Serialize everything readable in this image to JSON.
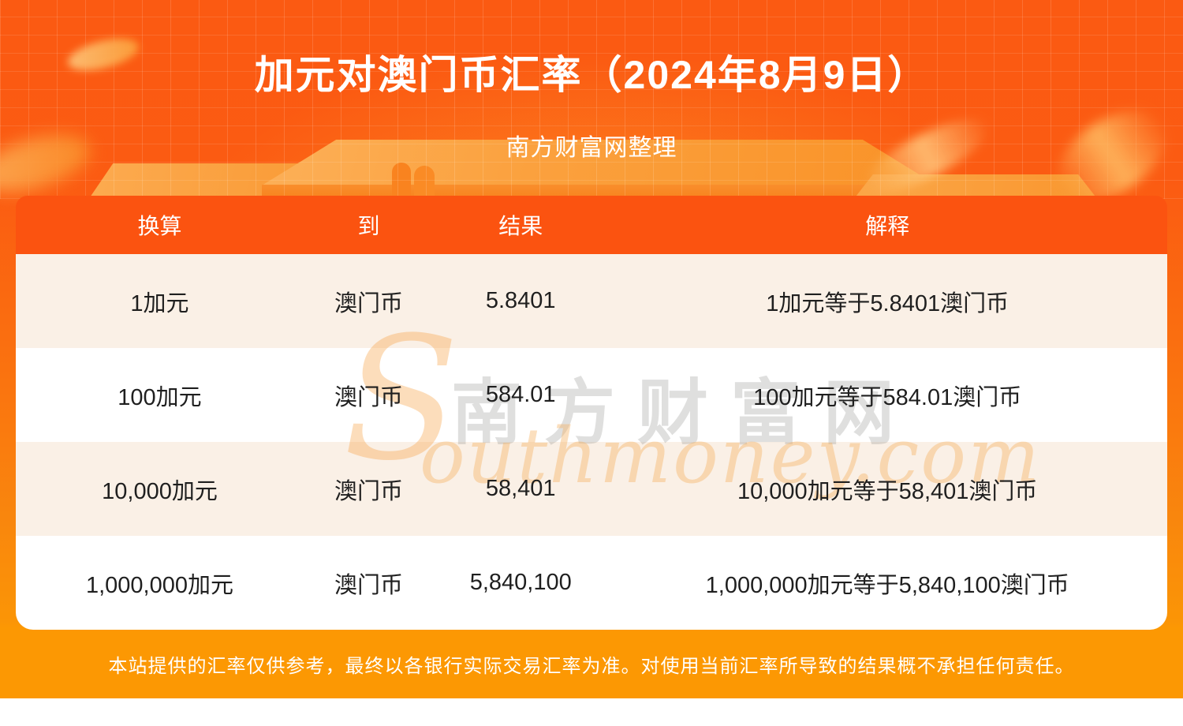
{
  "banner": {
    "title": "加元对澳门币汇率（2024年8月9日）",
    "subtitle": "南方财富网整理"
  },
  "table": {
    "headers": {
      "convert": "换算",
      "to": "到",
      "result": "结果",
      "explain": "解释"
    },
    "rows": [
      {
        "convert": "1加元",
        "to": "澳门币",
        "result": "5.8401",
        "explain": "1加元等于5.8401澳门币"
      },
      {
        "convert": "100加元",
        "to": "澳门币",
        "result": "584.01",
        "explain": "100加元等于584.01澳门币"
      },
      {
        "convert": "10,000加元",
        "to": "澳门币",
        "result": "58,401",
        "explain": "10,000加元等于58,401澳门币"
      },
      {
        "convert": "1,000,000加元",
        "to": "澳门币",
        "result": "5,840,100",
        "explain": "1,000,000加元等于5,840,100澳门币"
      }
    ]
  },
  "watermark": {
    "initial": "S",
    "cn": "南方财富网",
    "en": "outhmoney.com"
  },
  "footer": {
    "disclaimer": "本站提供的汇率仅供参考，最终以各银行实际交易汇率为准。对使用当前汇率所导致的结果概不承担任何责任。"
  },
  "colors": {
    "page_orange_top": "#fb5a12",
    "table_header_orange": "#fb5310",
    "row_cream": "#faf0e6",
    "row_white": "#ffffff",
    "footer_gold": "#fc9803",
    "text_dark": "#1f1f1f",
    "text_white": "#ffffff"
  },
  "chart_data": {
    "type": "table",
    "title": "加元对澳门币汇率（2024年8月9日）",
    "columns": [
      "换算",
      "到",
      "结果",
      "解释"
    ],
    "rows": [
      [
        "1加元",
        "澳门币",
        "5.8401",
        "1加元等于5.8401澳门币"
      ],
      [
        "100加元",
        "澳门币",
        "584.01",
        "100加元等于584.01澳门币"
      ],
      [
        "10,000加元",
        "澳门币",
        "58,401",
        "10,000加元等于58,401澳门币"
      ],
      [
        "1,000,000加元",
        "澳门币",
        "5,840,100",
        "1,000,000加元等于5,840,100澳门币"
      ]
    ],
    "rate_cad_to_mop": 5.8401
  }
}
